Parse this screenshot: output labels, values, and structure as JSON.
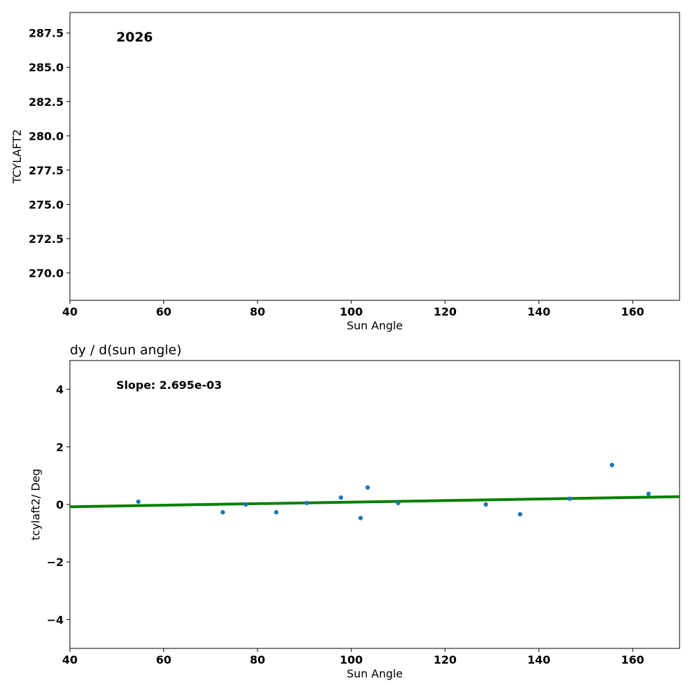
{
  "chart_data": [
    {
      "type": "scatter",
      "title": "",
      "annotation": "2026",
      "xlabel": "Sun Angle",
      "ylabel": "TCYLAFT2",
      "xlim": [
        40,
        170
      ],
      "ylim": [
        268,
        289
      ],
      "xticks": [
        40,
        60,
        80,
        100,
        120,
        140,
        160
      ],
      "yticks": [
        270.0,
        272.5,
        275.0,
        277.5,
        280.0,
        282.5,
        285.0,
        287.5
      ],
      "xtick_labels": [
        "40",
        "60",
        "80",
        "100",
        "120",
        "140",
        "160"
      ],
      "ytick_labels": [
        "270.0",
        "272.5",
        "275.0",
        "277.5",
        "280.0",
        "282.5",
        "285.0",
        "287.5"
      ],
      "grid": false,
      "series": []
    },
    {
      "type": "scatter",
      "title": "dy / d(sun angle)",
      "annotation": "Slope: 2.695e-03",
      "xlabel": "Sun Angle",
      "ylabel": "tcylaft2/ Deg",
      "xlim": [
        40,
        170
      ],
      "ylim": [
        -5,
        5
      ],
      "xticks": [
        40,
        60,
        80,
        100,
        120,
        140,
        160
      ],
      "yticks": [
        -4,
        -2,
        0,
        2,
        4
      ],
      "xtick_labels": [
        "40",
        "60",
        "80",
        "100",
        "120",
        "140",
        "160"
      ],
      "ytick_labels": [
        "−4",
        "−2",
        "0",
        "2",
        "4"
      ],
      "grid": false,
      "colors": {
        "points": "#1f77b4",
        "fit": "#008000"
      },
      "series": [
        {
          "x": [
            54.6,
            72.6,
            77.5,
            84.0,
            90.5,
            97.8,
            102.0,
            103.5,
            110.0,
            128.7,
            136.0,
            146.6,
            155.6,
            163.4
          ],
          "y": [
            0.1,
            -0.27,
            0.0,
            -0.27,
            0.05,
            0.24,
            -0.47,
            0.59,
            0.05,
            0.0,
            -0.34,
            0.2,
            1.37,
            0.37
          ]
        }
      ],
      "fit_line": {
        "x": [
          40,
          170
        ],
        "y": [
          -0.08,
          0.27
        ]
      }
    }
  ]
}
